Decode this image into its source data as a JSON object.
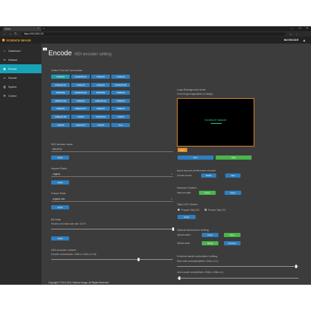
{
  "browser": {
    "tab_title": "Home",
    "url": "https://192.168.1.90",
    "new_tab_label": "+",
    "win_controls": [
      "—",
      "☐",
      "✕"
    ]
  },
  "app": {
    "brand": "SCIENCE IMAGE",
    "device": "NDI ENCODE",
    "user_icon": "user-icon"
  },
  "sidebar": {
    "items": [
      {
        "label": "Dashboard",
        "icon": "home-icon"
      },
      {
        "label": "Network",
        "icon": "network-icon"
      },
      {
        "label": "Encode",
        "icon": "encode-icon",
        "active": true
      },
      {
        "label": "Decode",
        "icon": "decode-icon"
      },
      {
        "label": "System",
        "icon": "system-icon"
      },
      {
        "label": "Control",
        "icon": "control-icon"
      }
    ]
  },
  "page": {
    "title": "Encode",
    "subtitle": "NDI encoder setting"
  },
  "video_format": {
    "heading": "Video Format Conversion",
    "buttons": [
      "2160p60",
      "2160p59.94",
      "2160p50",
      "2160p30",
      "2160p29.97",
      "2160p25",
      "2160p24",
      "2160p23.98",
      "1080P60i",
      "1080P59.94i",
      "1080P50i",
      "1080P60",
      "1080P23.98",
      "1080p60",
      "1080p59.94",
      "1080p50",
      "1080p30",
      "1080p29.97",
      "1080p25",
      "1080p24",
      "1080p23.98",
      "720p60",
      "720p59.94",
      "720p50",
      "720p30",
      "720p29.97",
      "720p25",
      "Auto"
    ],
    "selected": "2160p60"
  },
  "ndi_stream": {
    "heading": "NDI stream name",
    "value": "NDI-PC2",
    "apply": "Apply"
  },
  "aspect": {
    "heading": "Aspect Ratio",
    "value": "original",
    "apply": "Apply"
  },
  "frame_rate": {
    "heading": "Frame Rate",
    "value": "original rate",
    "apply": "Apply"
  },
  "bitrate": {
    "heading": "Bit Rate",
    "label": "Percent of normal code rate: 100 %",
    "level": 1.0,
    "apply": "Apply"
  },
  "ndi_volume": {
    "heading": "NDI encoder volume",
    "label": "Encoder volume(Mute=-20db,x=-20db,x=1.00)",
    "level": 0.72
  },
  "logo": {
    "heading": "Logo Background send",
    "label": "Current logo images(click to change)",
    "preview_text": "SCIENCE IMAGE",
    "open": "Open",
    "run": "Run",
    "stop": "Stop"
  },
  "source_pref": {
    "heading": "Input source preference choose",
    "label": "Choose source",
    "hdmi": "HDMI",
    "sdi": "SDI"
  },
  "intercom": {
    "heading": "Intercom Switch",
    "label": "Intercom state",
    "close": "Close",
    "open": "Open"
  },
  "tally": {
    "heading": "Tally LED Switch",
    "opt1": "Program Tally LED",
    "opt2": "Preview Tally LED",
    "apply": "Apply"
  },
  "optical": {
    "heading": "Optical transceiver setting",
    "label1": "Optical switch",
    "close": "Close",
    "open": "Open",
    "label2": "Optical mode",
    "single": "Single",
    "receive": "Receive"
  },
  "ext_audio": {
    "heading": "External audio embedded setting",
    "label1": "Mute audio embedded(Mute=-20db,x=0.1)",
    "level1": 0.98,
    "label2": "Line in audio volume(Mute=-20db,x=-20db,x=1)",
    "level2": 0.02
  },
  "footer": {
    "text": "Copyright © 2011-2021 Science Image. All Rights Reserved."
  },
  "colors": {
    "accent": "#17a2b8",
    "button": "#2d7fc1",
    "green": "#4ab54a",
    "orange": "#e08a2c"
  }
}
